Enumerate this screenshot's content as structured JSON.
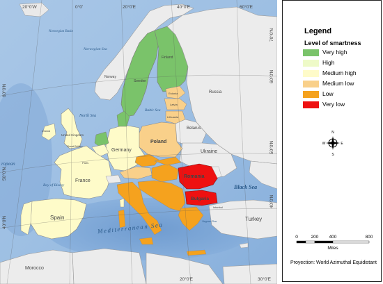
{
  "legend": {
    "title": "Legend",
    "subtitle": "Level of smartness",
    "items": [
      {
        "label": "Very high",
        "color": "#7ac36a"
      },
      {
        "label": "High",
        "color": "#eefac8"
      },
      {
        "label": "Medium high",
        "color": "#fefbc9"
      },
      {
        "label": "Medium low",
        "color": "#f9d08a"
      },
      {
        "label": "Low",
        "color": "#f5a21e"
      },
      {
        "label": "Very low",
        "color": "#ee1111"
      }
    ]
  },
  "scale_bar": {
    "ticks": [
      "0",
      "200",
      "400",
      "800"
    ],
    "unit": "Miles"
  },
  "projection": "Proyection: World Azimuthal Equidistant",
  "compass": {
    "n": "N",
    "s": "S",
    "e": "E",
    "w": "W"
  },
  "graticule": {
    "top": [
      "20°0'W",
      "0°0'",
      "20°0'E",
      "40°0'E",
      "60°0'E"
    ],
    "bottom": [
      "20°0'E",
      "30°0'E"
    ],
    "left": [
      "60°0'N",
      "50°0'N",
      "40°0'N"
    ],
    "right": [
      "70°0'N",
      "60°0'N",
      "50°0'N",
      "40°0'N"
    ]
  },
  "map_labels": {
    "norwegian_basin": "Norwegian Basin",
    "norwegian_sea": "Norwegian Sea",
    "north_sea": "North Sea",
    "baltic_sea": "Baltic Sea",
    "bay_of_biscay": "Bay of Biscay",
    "black_sea": "Black Sea",
    "mediterranean_sea": "Mediterranean Sea",
    "aegean_sea": "Aegean Sea",
    "european": "ropean",
    "norway": "Norway",
    "sweden": "Sweden",
    "finland": "Finland",
    "russia": "Russia",
    "belarus": "Belarus",
    "ukraine": "Ukraine",
    "poland": "Poland",
    "germany": "Germany",
    "france": "France",
    "spain": "Spain",
    "romania": "Romania",
    "bulgaria": "Bulgaria",
    "turkey": "Turkey",
    "morocco": "Morocco",
    "united_kingdom": "United Kingdom",
    "lithuania": "Lithuania",
    "latvia": "Latvia",
    "estonia": "Estonia",
    "paris": "Paris",
    "istanbul": "Istanbul",
    "great_britain": "Great Britain",
    "ireland": "Ireland"
  }
}
